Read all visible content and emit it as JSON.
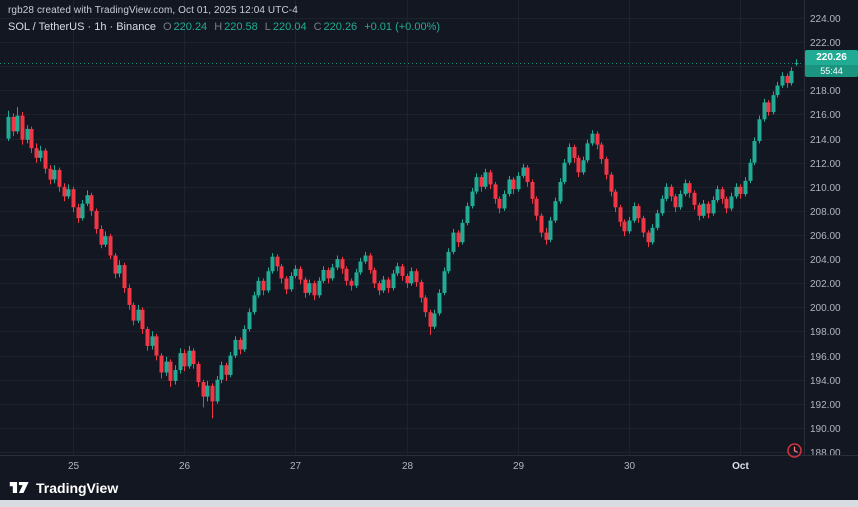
{
  "header": {
    "attribution": "rgb28 created with TradingView.com, Oct 01, 2025 12:04 UTC-4",
    "symbol_line": "SOL / TetherUS · 1h · Binance",
    "ohlc": {
      "o_label": "O",
      "o_value": "220.24",
      "h_label": "H",
      "h_value": "220.58",
      "l_label": "L",
      "l_value": "220.04",
      "c_label": "C",
      "c_value": "220.26",
      "change": "+0.01 (+0.00%)"
    }
  },
  "footer": {
    "brand": "TradingView"
  },
  "colors": {
    "background": "#131722",
    "grid": "#1e222d",
    "axis_text": "#b2b5be",
    "separator": "#2a2e39",
    "up": "#22ab94",
    "down": "#f23645",
    "badge": "#22ab94"
  },
  "chart_data": {
    "type": "candlestick",
    "title": "SOL / TetherUS · 1h · Binance",
    "symbol": "SOL / TetherUS",
    "interval": "1h",
    "exchange": "Binance",
    "last_price": 220.26,
    "last_price_label": "220.26",
    "countdown": "55:44",
    "up_color": "#22ab94",
    "down_color": "#f23645",
    "y_axis": {
      "min": 188,
      "max": 224,
      "step": 2,
      "tick_labels": [
        "224.00",
        "222.00",
        "220.00",
        "218.00",
        "216.00",
        "214.00",
        "212.00",
        "210.00",
        "208.00",
        "206.00",
        "204.00",
        "202.00",
        "200.00",
        "198.00",
        "196.00",
        "194.00",
        "192.00",
        "190.00",
        "188.00"
      ]
    },
    "x_axis": {
      "ticks": [
        {
          "label": "25",
          "index": 14
        },
        {
          "label": "26",
          "index": 38
        },
        {
          "label": "27",
          "index": 62
        },
        {
          "label": "28",
          "index": 86
        },
        {
          "label": "29",
          "index": 110
        },
        {
          "label": "30",
          "index": 134
        },
        {
          "label": "Oct",
          "index": 158,
          "emphasis": true
        }
      ]
    },
    "candles": [
      [
        214.0,
        216.3,
        213.8,
        215.8
      ],
      [
        215.8,
        216.1,
        214.2,
        214.6
      ],
      [
        214.6,
        216.6,
        214.4,
        215.9
      ],
      [
        215.9,
        216.2,
        213.5,
        213.9
      ],
      [
        213.9,
        215.1,
        213.6,
        214.8
      ],
      [
        214.8,
        215.0,
        212.8,
        213.2
      ],
      [
        213.2,
        213.6,
        212.0,
        212.4
      ],
      [
        212.4,
        213.4,
        212.1,
        213.0
      ],
      [
        213.0,
        213.2,
        211.1,
        211.5
      ],
      [
        211.5,
        211.8,
        210.2,
        210.6
      ],
      [
        210.6,
        211.8,
        210.3,
        211.4
      ],
      [
        211.4,
        211.6,
        209.6,
        210.0
      ],
      [
        210.0,
        210.3,
        208.8,
        209.2
      ],
      [
        209.2,
        210.2,
        209.0,
        209.8
      ],
      [
        209.8,
        210.0,
        207.9,
        208.3
      ],
      [
        208.3,
        208.6,
        207.0,
        207.4
      ],
      [
        207.4,
        208.9,
        207.2,
        208.6
      ],
      [
        208.6,
        209.7,
        208.4,
        209.3
      ],
      [
        209.3,
        209.5,
        207.6,
        208.0
      ],
      [
        208.0,
        208.2,
        206.1,
        206.5
      ],
      [
        206.5,
        206.8,
        204.9,
        205.2
      ],
      [
        205.2,
        206.3,
        205.0,
        205.9
      ],
      [
        205.9,
        206.1,
        204.0,
        204.3
      ],
      [
        204.3,
        204.5,
        202.4,
        202.8
      ],
      [
        202.8,
        203.9,
        202.5,
        203.5
      ],
      [
        203.5,
        203.7,
        201.2,
        201.6
      ],
      [
        201.6,
        201.9,
        199.8,
        200.2
      ],
      [
        200.2,
        200.4,
        198.5,
        198.9
      ],
      [
        198.9,
        200.2,
        198.7,
        199.8
      ],
      [
        199.8,
        200.0,
        197.8,
        198.2
      ],
      [
        198.2,
        198.4,
        196.4,
        196.8
      ],
      [
        196.8,
        198.0,
        196.5,
        197.6
      ],
      [
        197.6,
        197.8,
        195.6,
        196.0
      ],
      [
        196.0,
        196.2,
        194.1,
        194.6
      ],
      [
        194.6,
        195.9,
        194.3,
        195.5
      ],
      [
        195.5,
        195.7,
        193.4,
        193.9
      ],
      [
        193.9,
        195.2,
        193.6,
        194.8
      ],
      [
        194.8,
        196.6,
        194.5,
        196.2
      ],
      [
        196.2,
        196.5,
        194.7,
        195.1
      ],
      [
        195.1,
        196.8,
        194.9,
        196.4
      ],
      [
        196.4,
        196.6,
        194.9,
        195.3
      ],
      [
        195.3,
        195.5,
        193.4,
        193.8
      ],
      [
        193.8,
        194.0,
        191.7,
        192.6
      ],
      [
        192.6,
        193.9,
        192.2,
        193.5
      ],
      [
        193.5,
        193.7,
        190.8,
        192.2
      ],
      [
        192.2,
        194.3,
        192.0,
        194.0
      ],
      [
        194.0,
        195.5,
        193.7,
        195.2
      ],
      [
        195.2,
        195.4,
        193.9,
        194.4
      ],
      [
        194.4,
        196.3,
        194.2,
        196.0
      ],
      [
        196.0,
        197.6,
        195.8,
        197.3
      ],
      [
        197.3,
        197.5,
        196.1,
        196.5
      ],
      [
        196.5,
        198.5,
        196.3,
        198.2
      ],
      [
        198.2,
        199.9,
        198.0,
        199.6
      ],
      [
        199.6,
        201.3,
        199.4,
        201.0
      ],
      [
        201.0,
        202.5,
        200.8,
        202.2
      ],
      [
        202.2,
        202.4,
        201.0,
        201.4
      ],
      [
        201.4,
        203.3,
        201.2,
        203.0
      ],
      [
        203.0,
        204.5,
        202.8,
        204.2
      ],
      [
        204.2,
        204.4,
        203.0,
        203.4
      ],
      [
        203.4,
        203.6,
        202.0,
        202.4
      ],
      [
        202.4,
        202.6,
        201.1,
        201.5
      ],
      [
        201.5,
        202.9,
        201.3,
        202.6
      ],
      [
        202.6,
        203.5,
        202.4,
        203.2
      ],
      [
        203.2,
        203.4,
        201.9,
        202.3
      ],
      [
        202.3,
        202.5,
        200.8,
        201.2
      ],
      [
        201.2,
        202.3,
        201.0,
        202.0
      ],
      [
        202.0,
        202.2,
        200.6,
        201.0
      ],
      [
        201.0,
        202.5,
        200.8,
        202.2
      ],
      [
        202.2,
        203.4,
        202.0,
        203.1
      ],
      [
        203.1,
        203.3,
        202.0,
        202.4
      ],
      [
        202.4,
        203.6,
        202.2,
        203.3
      ],
      [
        203.3,
        204.3,
        203.1,
        204.0
      ],
      [
        204.0,
        204.2,
        202.8,
        203.2
      ],
      [
        203.2,
        203.4,
        201.8,
        202.2
      ],
      [
        202.2,
        202.4,
        201.4,
        201.8
      ],
      [
        201.8,
        203.2,
        201.6,
        202.9
      ],
      [
        202.9,
        204.1,
        202.7,
        203.8
      ],
      [
        203.8,
        204.6,
        203.6,
        204.3
      ],
      [
        204.3,
        204.5,
        202.8,
        203.1
      ],
      [
        203.1,
        203.3,
        201.6,
        202.0
      ],
      [
        202.0,
        202.2,
        201.0,
        201.4
      ],
      [
        201.4,
        202.6,
        201.2,
        202.3
      ],
      [
        202.3,
        202.5,
        201.2,
        201.6
      ],
      [
        201.6,
        203.1,
        201.4,
        202.8
      ],
      [
        202.8,
        203.7,
        202.6,
        203.4
      ],
      [
        203.4,
        203.6,
        202.2,
        202.6
      ],
      [
        202.6,
        202.8,
        201.6,
        202.0
      ],
      [
        202.0,
        203.3,
        201.8,
        203.0
      ],
      [
        203.0,
        203.2,
        201.7,
        202.1
      ],
      [
        202.1,
        202.3,
        200.4,
        200.8
      ],
      [
        200.8,
        201.0,
        199.2,
        199.6
      ],
      [
        199.6,
        199.8,
        197.7,
        198.4
      ],
      [
        198.4,
        199.8,
        198.2,
        199.5
      ],
      [
        199.5,
        201.5,
        199.3,
        201.2
      ],
      [
        201.2,
        203.3,
        201.0,
        203.0
      ],
      [
        203.0,
        204.9,
        202.8,
        204.6
      ],
      [
        204.6,
        206.5,
        204.4,
        206.2
      ],
      [
        206.2,
        206.4,
        205.0,
        205.4
      ],
      [
        205.4,
        207.3,
        205.2,
        207.0
      ],
      [
        207.0,
        208.7,
        206.8,
        208.4
      ],
      [
        208.4,
        209.9,
        208.2,
        209.6
      ],
      [
        209.6,
        211.1,
        209.4,
        210.8
      ],
      [
        210.8,
        211.0,
        209.6,
        210.0
      ],
      [
        210.0,
        211.5,
        209.8,
        211.2
      ],
      [
        211.2,
        211.4,
        209.8,
        210.2
      ],
      [
        210.2,
        210.4,
        208.6,
        209.0
      ],
      [
        209.0,
        209.2,
        207.8,
        208.2
      ],
      [
        208.2,
        209.7,
        208.0,
        209.4
      ],
      [
        209.4,
        210.9,
        209.2,
        210.6
      ],
      [
        210.6,
        210.8,
        209.4,
        209.8
      ],
      [
        209.8,
        211.2,
        209.6,
        210.9
      ],
      [
        210.9,
        211.9,
        210.7,
        211.6
      ],
      [
        211.6,
        211.8,
        210.0,
        210.4
      ],
      [
        210.4,
        210.6,
        208.6,
        209.0
      ],
      [
        209.0,
        209.2,
        207.2,
        207.6
      ],
      [
        207.6,
        207.8,
        205.8,
        206.2
      ],
      [
        206.2,
        206.6,
        205.2,
        205.6
      ],
      [
        205.6,
        207.5,
        205.4,
        207.2
      ],
      [
        207.2,
        209.1,
        207.0,
        208.8
      ],
      [
        208.8,
        210.7,
        208.6,
        210.4
      ],
      [
        210.4,
        212.3,
        210.2,
        212.0
      ],
      [
        212.0,
        213.6,
        211.8,
        213.3
      ],
      [
        213.3,
        213.5,
        212.0,
        212.4
      ],
      [
        212.4,
        212.6,
        210.8,
        211.2
      ],
      [
        211.2,
        212.5,
        211.0,
        212.2
      ],
      [
        212.2,
        213.9,
        212.0,
        213.6
      ],
      [
        213.6,
        214.7,
        213.4,
        214.4
      ],
      [
        214.4,
        214.6,
        213.1,
        213.5
      ],
      [
        213.5,
        213.7,
        211.9,
        212.3
      ],
      [
        212.3,
        212.5,
        210.6,
        211.0
      ],
      [
        211.0,
        211.2,
        209.2,
        209.6
      ],
      [
        209.6,
        209.8,
        207.9,
        208.3
      ],
      [
        208.3,
        208.5,
        206.7,
        207.1
      ],
      [
        207.1,
        207.3,
        205.9,
        206.3
      ],
      [
        206.3,
        207.5,
        206.1,
        207.2
      ],
      [
        207.2,
        208.7,
        207.0,
        208.4
      ],
      [
        208.4,
        208.6,
        207.0,
        207.4
      ],
      [
        207.4,
        207.6,
        205.8,
        206.2
      ],
      [
        206.2,
        206.4,
        205.0,
        205.4
      ],
      [
        205.4,
        206.9,
        205.2,
        206.6
      ],
      [
        206.6,
        208.1,
        206.4,
        207.8
      ],
      [
        207.8,
        209.3,
        207.6,
        209.0
      ],
      [
        209.0,
        210.3,
        208.8,
        210.0
      ],
      [
        210.0,
        210.2,
        208.8,
        209.2
      ],
      [
        209.2,
        209.4,
        207.9,
        208.3
      ],
      [
        208.3,
        209.7,
        208.1,
        209.4
      ],
      [
        209.4,
        210.6,
        209.2,
        210.3
      ],
      [
        210.3,
        210.5,
        209.1,
        209.5
      ],
      [
        209.5,
        209.7,
        208.1,
        208.5
      ],
      [
        208.5,
        208.7,
        207.2,
        207.6
      ],
      [
        207.6,
        208.9,
        207.4,
        208.6
      ],
      [
        208.6,
        208.8,
        207.4,
        207.8
      ],
      [
        207.8,
        209.2,
        207.6,
        208.9
      ],
      [
        208.9,
        210.1,
        208.7,
        209.8
      ],
      [
        209.8,
        210.0,
        208.6,
        209.0
      ],
      [
        209.0,
        209.2,
        207.8,
        208.2
      ],
      [
        208.2,
        209.5,
        208.0,
        209.2
      ],
      [
        209.2,
        210.3,
        209.0,
        210.0
      ],
      [
        210.0,
        210.2,
        209.0,
        209.4
      ],
      [
        209.4,
        210.8,
        209.2,
        210.5
      ],
      [
        210.5,
        212.3,
        210.3,
        212.0
      ],
      [
        212.0,
        214.1,
        211.8,
        213.8
      ],
      [
        213.8,
        215.9,
        213.6,
        215.6
      ],
      [
        215.6,
        217.3,
        215.4,
        217.0
      ],
      [
        217.0,
        217.2,
        215.9,
        216.2
      ],
      [
        216.2,
        217.9,
        216.0,
        217.6
      ],
      [
        217.6,
        218.7,
        217.4,
        218.4
      ],
      [
        218.4,
        219.5,
        218.2,
        219.2
      ],
      [
        219.2,
        219.4,
        218.2,
        218.6
      ],
      [
        218.6,
        219.9,
        218.4,
        219.6
      ],
      [
        220.24,
        220.58,
        220.04,
        220.26
      ]
    ]
  }
}
